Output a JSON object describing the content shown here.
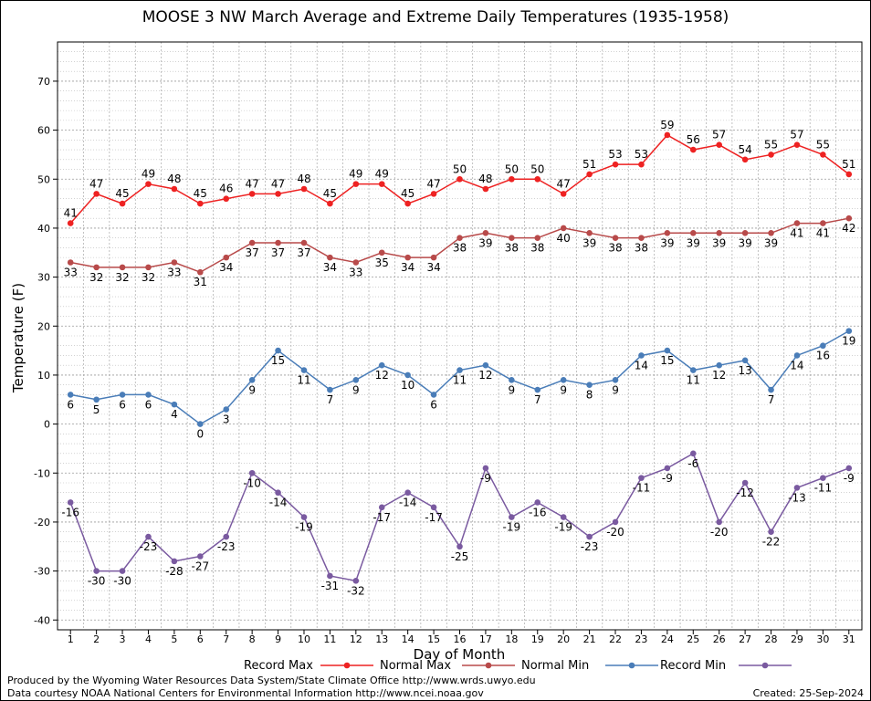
{
  "footer": {
    "produced_by": "Produced by the Wyoming Water Resources Data System/State Climate Office http://www.wrds.uwyo.edu",
    "data_courtesy": "Data courtesy NOAA National Centers for Environmental Information http://www.ncei.noaa.gov",
    "created": "Created:  25-Sep-2024"
  },
  "chart_data": {
    "type": "line",
    "title": "MOOSE 3 NW March Average and Extreme Daily Temperatures (1935-1958)",
    "xlabel": "Day of Month",
    "ylabel": "Temperature (F)",
    "ylim": [
      -42,
      78
    ],
    "yticks": [
      -40,
      -30,
      -20,
      -10,
      0,
      10,
      20,
      30,
      40,
      50,
      60,
      70
    ],
    "x": [
      1,
      2,
      3,
      4,
      5,
      6,
      7,
      8,
      9,
      10,
      11,
      12,
      13,
      14,
      15,
      16,
      17,
      18,
      19,
      20,
      21,
      22,
      23,
      24,
      25,
      26,
      27,
      28,
      29,
      30,
      31
    ],
    "grid": true,
    "legend_position": "bottom",
    "series": [
      {
        "name": "Record Max",
        "color": "#ee2222",
        "values": [
          41,
          47,
          45,
          49,
          48,
          45,
          46,
          47,
          47,
          48,
          45,
          49,
          49,
          45,
          47,
          50,
          48,
          50,
          50,
          47,
          51,
          53,
          53,
          59,
          56,
          57,
          54,
          55,
          57,
          55,
          51
        ]
      },
      {
        "name": "Normal Max",
        "color": "#b84a4a",
        "values": [
          33,
          32,
          32,
          32,
          33,
          31,
          34,
          37,
          37,
          37,
          34,
          33,
          35,
          34,
          34,
          38,
          39,
          38,
          38,
          40,
          39,
          38,
          38,
          39,
          39,
          39,
          39,
          39,
          41,
          41,
          42
        ]
      },
      {
        "name": "Normal Min",
        "color": "#4a7db8",
        "values": [
          6,
          5,
          6,
          6,
          4,
          0,
          3,
          9,
          15,
          11,
          7,
          9,
          12,
          10,
          6,
          11,
          12,
          9,
          7,
          9,
          8,
          9,
          14,
          15,
          11,
          12,
          13,
          7,
          14,
          16,
          19
        ]
      },
      {
        "name": "Record Min",
        "color": "#7a5aa0",
        "values": [
          -16,
          -30,
          -30,
          -23,
          -28,
          -27,
          -23,
          -10,
          -14,
          -19,
          -31,
          -32,
          -17,
          -14,
          -17,
          -25,
          -9,
          -19,
          -16,
          -19,
          -23,
          -20,
          -11,
          -9,
          -6,
          -20,
          -12,
          -22,
          -13,
          -11,
          -9
        ]
      }
    ]
  }
}
